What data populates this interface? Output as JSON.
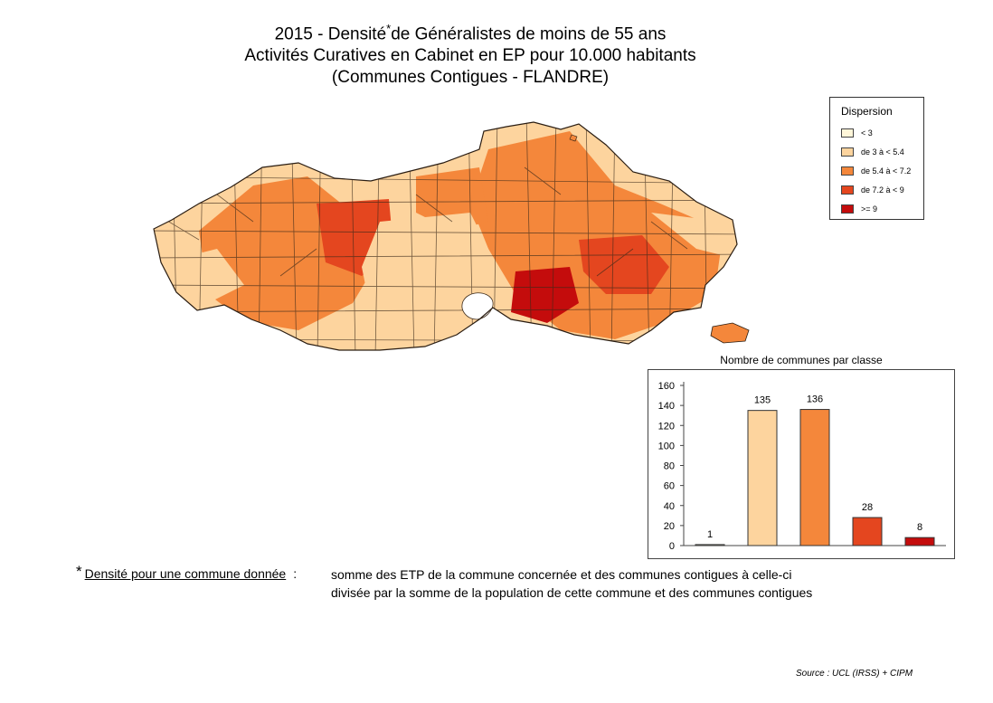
{
  "title": {
    "line1_a": "2015 - Densité",
    "line1_star": "*",
    "line1_b": "de Généralistes de moins de 55 ans",
    "line2": "Activités Curatives en Cabinet en EP pour 10.000 habitants",
    "line3": "(Communes Contigues - FLANDRE)"
  },
  "legend": {
    "title": "Dispersion",
    "items": [
      {
        "label": "< 3",
        "color": "#fff6d9"
      },
      {
        "label": "de 3 à < 5.4",
        "color": "#fdd49e"
      },
      {
        "label": "de 5.4 à < 7.2",
        "color": "#f4873b"
      },
      {
        "label": "de 7.2 à < 9",
        "color": "#e4461f"
      },
      {
        "label": ">= 9",
        "color": "#c40c0c"
      }
    ]
  },
  "chart_data": {
    "type": "bar",
    "title": "Nombre de communes par classe",
    "categories": [
      "< 3",
      "de 3 à < 5.4",
      "de 5.4 à < 7.2",
      "de 7.2 à < 9",
      ">= 9"
    ],
    "values": [
      1,
      135,
      136,
      28,
      8
    ],
    "colors": [
      "#fff6d9",
      "#fdd49e",
      "#f4873b",
      "#e4461f",
      "#c40c0c"
    ],
    "ylim": [
      0,
      160
    ],
    "yticks": [
      "160",
      "140",
      "120",
      "100",
      "80",
      "60",
      "40",
      "20",
      "0"
    ],
    "data_labels": [
      "1",
      "135",
      "136",
      "28",
      "8"
    ],
    "grid": false
  },
  "footnote": {
    "star": "*",
    "term": "Densité pour une commune donnée",
    "colon": ":",
    "line1": "somme des ETP de la commune concernée et des communes contigues à celle-ci",
    "line2": "divisée par la somme de la population de cette commune et des communes contigues"
  },
  "source": "Source : UCL (IRSS) + CIPM"
}
